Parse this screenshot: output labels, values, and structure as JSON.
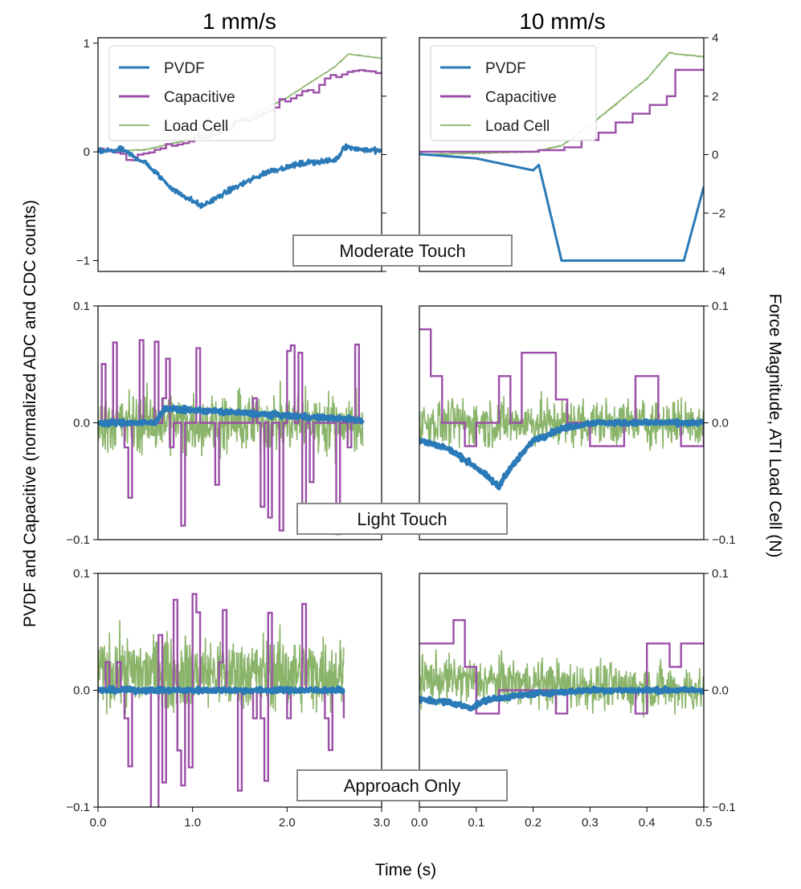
{
  "chart_data": {
    "type": "line",
    "column_titles": [
      "1 mm/s",
      "10 mm/s"
    ],
    "xlabel": "Time (s)",
    "ylabel_left": "PVDF and Capacitive (normalized ADC and CDC counts)",
    "ylabel_right": "Force Magnitude, ATI Load Cell (N)",
    "legend": [
      "PVDF",
      "Capacitive",
      "Load Cell"
    ],
    "colors": {
      "pvdf": "#2a7ab8",
      "capacitive": "#9b4fa8",
      "loadcell": "#8ab46a"
    },
    "row_labels": [
      "Moderate Touch",
      "Light Touch",
      "Approach Only"
    ],
    "columns": [
      {
        "xlim": [
          0,
          3.0
        ],
        "xticks": [
          0,
          1,
          2,
          3
        ],
        "xtick_labels": [
          "0.0",
          "1.0",
          "2.0",
          "3.0"
        ]
      },
      {
        "xlim": [
          0,
          0.5
        ],
        "xticks": [
          0,
          0.1,
          0.2,
          0.3,
          0.4,
          0.5
        ],
        "xtick_labels": [
          "0.0",
          "0.1",
          "0.2",
          "0.3",
          "0.4",
          "0.5"
        ]
      }
    ],
    "rows": [
      {
        "ylim": [
          -1.1,
          1.05
        ],
        "yticks": [
          -1,
          0,
          1
        ],
        "ytick_labels": [
          "−1",
          "0",
          "1"
        ],
        "right_ylim": [
          -4,
          4
        ],
        "right_yticks": [
          -4,
          -2,
          0,
          2,
          4
        ],
        "right_ytick_labels": [
          "−4",
          "−2",
          "0",
          "2",
          "4"
        ],
        "right_tick_stubs_only": [
          -4,
          -2,
          0,
          2,
          4
        ]
      },
      {
        "ylim": [
          -0.1,
          0.1
        ],
        "yticks": [
          -0.1,
          0,
          0.1
        ],
        "ytick_labels": [
          "−0.1",
          "0.0",
          "0.1"
        ],
        "right_ylim": [
          -0.1,
          0.1
        ],
        "right_yticks": [
          -0.1,
          0,
          0.1
        ],
        "right_ytick_labels": [
          "−0.1",
          "0.0",
          "0.1"
        ]
      },
      {
        "ylim": [
          -0.1,
          0.1
        ],
        "yticks": [
          -0.1,
          0,
          0.1
        ],
        "ytick_labels": [
          "−0.1",
          "0.0",
          "0.1"
        ],
        "right_ylim": [
          -0.1,
          0.1
        ],
        "right_yticks": [
          -0.1,
          0,
          0.1
        ],
        "right_ytick_labels": [
          "−0.1",
          "0.0",
          "0.1"
        ]
      }
    ],
    "panels": [
      {
        "row": 0,
        "col": 0,
        "legend": true,
        "pvdf": [
          [
            0,
            0
          ],
          [
            0.25,
            0.02
          ],
          [
            0.5,
            -0.1
          ],
          [
            0.8,
            -0.35
          ],
          [
            1.1,
            -0.5
          ],
          [
            1.4,
            -0.35
          ],
          [
            1.8,
            -0.18
          ],
          [
            2.2,
            -0.1
          ],
          [
            2.5,
            -0.08
          ],
          [
            2.55,
            -0.04
          ],
          [
            2.6,
            0.05
          ],
          [
            2.8,
            0.02
          ],
          [
            3.0,
            0.01
          ]
        ],
        "pvdf_noise": 0.025,
        "capacitive_steps": [
          [
            0,
            0.03
          ],
          [
            0.3,
            -0.03
          ],
          [
            0.6,
            0.02
          ],
          [
            0.9,
            0.08
          ],
          [
            1.2,
            0.16
          ],
          [
            1.5,
            0.26
          ],
          [
            1.8,
            0.38
          ],
          [
            2.1,
            0.52
          ],
          [
            2.4,
            0.64
          ],
          [
            2.7,
            0.76
          ],
          [
            2.85,
            0.74
          ],
          [
            3.0,
            0.74
          ]
        ],
        "capacitive_step_interval": 0.06,
        "capacitive_jitter": 0.025,
        "loadcell": [
          [
            0,
            0
          ],
          [
            0.5,
            0.02
          ],
          [
            1.0,
            0.12
          ],
          [
            1.5,
            0.28
          ],
          [
            2.0,
            0.5
          ],
          [
            2.5,
            0.78
          ],
          [
            2.65,
            0.9
          ],
          [
            3.0,
            0.86
          ]
        ],
        "loadcell_noise": 0.004
      },
      {
        "row": 0,
        "col": 1,
        "legend": true,
        "pvdf": [
          [
            0,
            -0.02
          ],
          [
            0.1,
            -0.06
          ],
          [
            0.2,
            -0.17
          ],
          [
            0.21,
            -0.12
          ],
          [
            0.25,
            -1.0
          ],
          [
            0.465,
            -1.0
          ],
          [
            0.5,
            -0.32
          ]
        ],
        "pvdf_noise": 0.0,
        "capacitive_steps": [
          [
            0,
            0.1
          ],
          [
            0.1,
            0.1
          ],
          [
            0.2,
            0.15
          ],
          [
            0.25,
            0.25
          ],
          [
            0.28,
            0.5
          ],
          [
            0.31,
            0.75
          ],
          [
            0.34,
            1.1
          ],
          [
            0.37,
            1.4
          ],
          [
            0.4,
            1.7
          ],
          [
            0.43,
            2.0
          ],
          [
            0.45,
            2.9
          ],
          [
            0.48,
            2.9
          ],
          [
            0.5,
            2.9
          ]
        ],
        "capacitive_step_interval": 0.015,
        "capacitive_jitter": 0.0,
        "capacitive_axis": "right",
        "loadcell": [
          [
            0,
            0
          ],
          [
            0.2,
            0.1
          ],
          [
            0.25,
            0.3
          ],
          [
            0.3,
            1.0
          ],
          [
            0.35,
            1.8
          ],
          [
            0.4,
            2.6
          ],
          [
            0.44,
            3.5
          ],
          [
            0.45,
            3.45
          ],
          [
            0.5,
            3.35
          ]
        ],
        "loadcell_axis": "right",
        "loadcell_noise": 0.02
      },
      {
        "row": 1,
        "col": 0,
        "legend": false,
        "pvdf": [
          [
            0,
            0
          ],
          [
            0.6,
            0
          ],
          [
            0.7,
            0.012
          ],
          [
            1.2,
            0.01
          ],
          [
            2.0,
            0.006
          ],
          [
            2.7,
            0.003
          ],
          [
            2.8,
            0.002
          ]
        ],
        "pvdf_noise": 0.002,
        "capacitive_steps": [
          [
            0,
            0
          ],
          [
            2.8,
            0
          ]
        ],
        "capacitive_step_interval": 0.04,
        "capacitive_jitter": 0.035,
        "loadcell": [
          [
            0,
            0
          ],
          [
            2.8,
            0
          ]
        ],
        "loadcell_noise": 0.025
      },
      {
        "row": 1,
        "col": 1,
        "legend": false,
        "pvdf": [
          [
            0,
            -0.015
          ],
          [
            0.05,
            -0.022
          ],
          [
            0.1,
            -0.038
          ],
          [
            0.14,
            -0.055
          ],
          [
            0.15,
            -0.045
          ],
          [
            0.2,
            -0.015
          ],
          [
            0.25,
            -0.005
          ],
          [
            0.3,
            0
          ],
          [
            0.5,
            0
          ]
        ],
        "pvdf_noise": 0.002,
        "capacitive_steps": [
          [
            0,
            0.08
          ],
          [
            0.02,
            0.04
          ],
          [
            0.04,
            0
          ],
          [
            0.08,
            -0.02
          ],
          [
            0.09,
            0
          ],
          [
            0.14,
            0.04
          ],
          [
            0.16,
            0
          ],
          [
            0.18,
            0.06
          ],
          [
            0.22,
            0.02
          ],
          [
            0.25,
            0
          ],
          [
            0.3,
            -0.02
          ],
          [
            0.36,
            0
          ],
          [
            0.38,
            0.04
          ],
          [
            0.42,
            0
          ],
          [
            0.45,
            -0.02
          ],
          [
            0.5,
            0
          ]
        ],
        "capacitive_step_interval": 0.02,
        "capacitive_jitter": 0.0,
        "loadcell": [
          [
            0,
            0
          ],
          [
            0.5,
            0
          ]
        ],
        "loadcell_noise": 0.02
      },
      {
        "row": 2,
        "col": 0,
        "legend": false,
        "pvdf": [
          [
            0,
            0
          ],
          [
            2.6,
            0
          ]
        ],
        "pvdf_noise": 0.002,
        "capacitive_steps": [
          [
            0,
            0
          ],
          [
            2.6,
            0
          ]
        ],
        "capacitive_step_interval": 0.04,
        "capacitive_jitter": 0.04,
        "loadcell": [
          [
            0,
            0.015
          ],
          [
            2.6,
            0.015
          ]
        ],
        "loadcell_noise": 0.03
      },
      {
        "row": 2,
        "col": 1,
        "legend": false,
        "pvdf": [
          [
            0,
            -0.008
          ],
          [
            0.05,
            -0.01
          ],
          [
            0.09,
            -0.015
          ],
          [
            0.12,
            -0.008
          ],
          [
            0.2,
            -0.003
          ],
          [
            0.3,
            0
          ],
          [
            0.5,
            0
          ]
        ],
        "pvdf_noise": 0.002,
        "capacitive_steps": [
          [
            0,
            0.04
          ],
          [
            0.03,
            0.04
          ],
          [
            0.06,
            0.06
          ],
          [
            0.08,
            0.02
          ],
          [
            0.1,
            -0.02
          ],
          [
            0.12,
            -0.02
          ],
          [
            0.14,
            0
          ],
          [
            0.19,
            0
          ],
          [
            0.22,
            -0.02
          ],
          [
            0.25,
            0
          ],
          [
            0.3,
            0
          ],
          [
            0.37,
            -0.02
          ],
          [
            0.4,
            0.04
          ],
          [
            0.43,
            0.02
          ],
          [
            0.45,
            0.04
          ],
          [
            0.5,
            0.04
          ]
        ],
        "capacitive_step_interval": 0.02,
        "capacitive_jitter": 0.0,
        "loadcell": [
          [
            0,
            0.01
          ],
          [
            0.5,
            0
          ]
        ],
        "loadcell_noise": 0.02
      }
    ]
  }
}
